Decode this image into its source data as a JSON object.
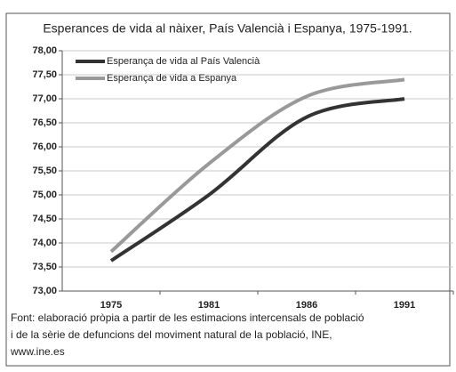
{
  "chart_data": {
    "type": "line",
    "title": "Esperances de vida al nàixer, País Valencià i Espanya, 1975-1991.",
    "categories": [
      "1975",
      "1981",
      "1986",
      "1991"
    ],
    "series": [
      {
        "name": "Esperança de vida al País Valencià",
        "color": "#333333",
        "values": [
          73.63,
          75.0,
          76.62,
          77.0
        ]
      },
      {
        "name": "Esperança de vida a Espanya",
        "color": "#999999",
        "values": [
          73.82,
          75.65,
          77.05,
          77.4
        ]
      }
    ],
    "ylim": [
      73,
      78
    ],
    "yticks": [
      {
        "value": 73,
        "label": "73,00"
      },
      {
        "value": 73.5,
        "label": "73,50"
      },
      {
        "value": 74,
        "label": "74,00"
      },
      {
        "value": 74.5,
        "label": "74,50"
      },
      {
        "value": 75,
        "label": "75,00"
      },
      {
        "value": 75.5,
        "label": "75,50"
      },
      {
        "value": 76,
        "label": "76,00"
      },
      {
        "value": 76.5,
        "label": "76,50"
      },
      {
        "value": 77,
        "label": "77,00"
      },
      {
        "value": 77.5,
        "label": "77,50"
      },
      {
        "value": 78,
        "label": "78,00"
      }
    ],
    "grid": true,
    "legend": "top-left",
    "footnote": [
      "Font: elaboració pròpia a partir de les estimacions intercensals de població",
      "i de la sèrie de defuncions del moviment natural de la  població, INE,",
      "www.ine.es"
    ]
  }
}
